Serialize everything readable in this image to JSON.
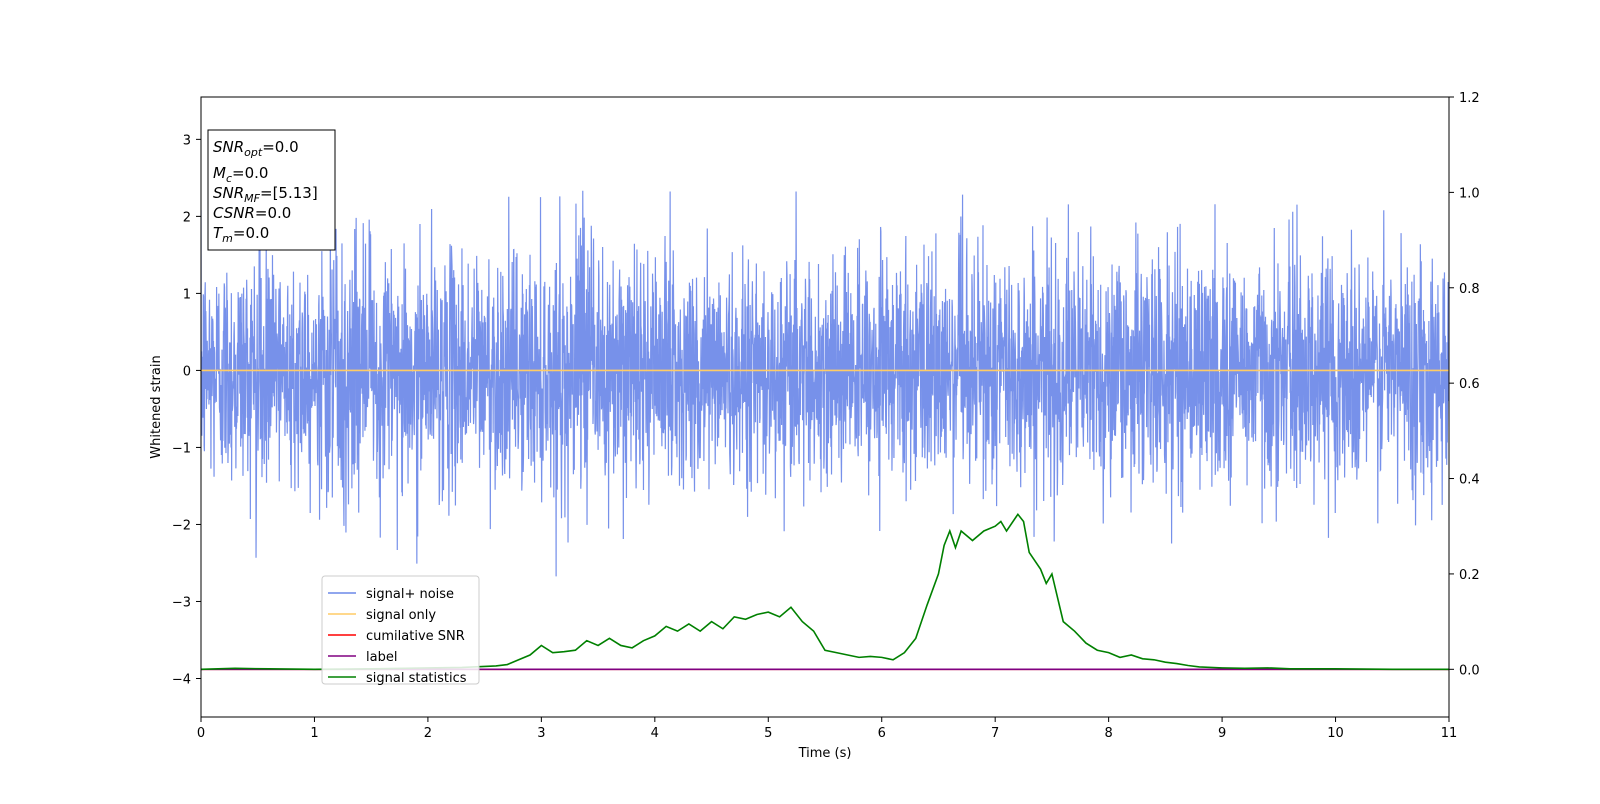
{
  "chart_data": {
    "type": "line",
    "xlabel": "Time (s)",
    "ylabel": "Whitened strain",
    "xlim": [
      0,
      11
    ],
    "ylim_left": [
      -4.5,
      3.55
    ],
    "ylim_right": [
      -0.1,
      1.2
    ],
    "x_ticks": [
      0,
      1,
      2,
      3,
      4,
      5,
      6,
      7,
      8,
      9,
      10,
      11
    ],
    "y_ticks_left": [
      -4,
      -3,
      -2,
      -1,
      0,
      1,
      2,
      3
    ],
    "y_ticks_right": [
      0.0,
      0.2,
      0.4,
      0.6,
      0.8,
      1.0,
      1.2
    ],
    "y_ticks_right_labels": [
      "0.0",
      "0.2",
      "0.4",
      "0.6",
      "0.8",
      "1.0",
      "1.2"
    ],
    "grid": false,
    "legend_placement": "lower-left",
    "legend": [
      {
        "label": "signal+ noise",
        "color": "#6b88e8"
      },
      {
        "label": "signal only",
        "color": "#ffcc66"
      },
      {
        "label": "cumilative SNR",
        "color": "#ff0000"
      },
      {
        "label": "label",
        "color": "#800080"
      },
      {
        "label": "signal statistics",
        "color": "#008000"
      }
    ],
    "annotation": {
      "lines": [
        {
          "sym": "SNR",
          "sub": "opt",
          "rest": "=0.0"
        },
        {
          "sym": "M",
          "sub": "c",
          "rest": "=0.0"
        },
        {
          "sym": "SNR",
          "sub": "MF",
          "rest": "=[5.13]"
        },
        {
          "sym": "CSNR",
          "sub": "",
          "rest": "=0.0"
        },
        {
          "sym": "T",
          "sub": "m",
          "rest": "=0.0"
        }
      ]
    },
    "series": [
      {
        "name": "signal+ noise",
        "color": "#6b88e8",
        "axis": "left",
        "kind": "noise",
        "sigma": 0.75,
        "range": [
          -2.7,
          2.5
        ],
        "samples": 4400
      },
      {
        "name": "signal only",
        "color": "#ffcc66",
        "axis": "left",
        "x": [
          0,
          11
        ],
        "y": [
          0.0,
          0.0
        ]
      },
      {
        "name": "cumilative SNR",
        "color": "#ff0000",
        "axis": "right",
        "x": [
          0,
          11
        ],
        "y": [
          0.0,
          0.0
        ]
      },
      {
        "name": "label",
        "color": "#800080",
        "axis": "right",
        "x": [
          0,
          11
        ],
        "y": [
          0.0,
          0.0
        ]
      },
      {
        "name": "signal statistics",
        "color": "#008000",
        "axis": "right",
        "x": [
          0,
          0.3,
          0.6,
          1.0,
          1.5,
          2.0,
          2.3,
          2.5,
          2.6,
          2.7,
          2.8,
          2.9,
          3.0,
          3.1,
          3.2,
          3.3,
          3.4,
          3.5,
          3.6,
          3.7,
          3.8,
          3.9,
          4.0,
          4.1,
          4.2,
          4.3,
          4.4,
          4.5,
          4.6,
          4.7,
          4.8,
          4.9,
          5.0,
          5.1,
          5.2,
          5.3,
          5.4,
          5.5,
          5.6,
          5.7,
          5.8,
          5.9,
          6.0,
          6.1,
          6.2,
          6.3,
          6.4,
          6.5,
          6.55,
          6.6,
          6.65,
          6.7,
          6.8,
          6.9,
          7.0,
          7.05,
          7.1,
          7.2,
          7.25,
          7.3,
          7.4,
          7.45,
          7.5,
          7.6,
          7.7,
          7.8,
          7.9,
          8.0,
          8.1,
          8.2,
          8.3,
          8.4,
          8.5,
          8.6,
          8.7,
          8.8,
          9.0,
          9.2,
          9.4,
          9.6,
          9.8,
          10.0,
          10.5,
          11.0
        ],
        "y": [
          0.0,
          0.002,
          0.001,
          0.0,
          0.001,
          0.003,
          0.004,
          0.006,
          0.007,
          0.01,
          0.02,
          0.03,
          0.05,
          0.035,
          0.037,
          0.04,
          0.06,
          0.05,
          0.065,
          0.05,
          0.045,
          0.06,
          0.07,
          0.09,
          0.08,
          0.095,
          0.08,
          0.1,
          0.085,
          0.11,
          0.105,
          0.115,
          0.12,
          0.11,
          0.13,
          0.1,
          0.08,
          0.04,
          0.035,
          0.03,
          0.025,
          0.027,
          0.025,
          0.02,
          0.035,
          0.065,
          0.135,
          0.2,
          0.26,
          0.29,
          0.255,
          0.29,
          0.27,
          0.29,
          0.3,
          0.31,
          0.29,
          0.325,
          0.31,
          0.245,
          0.21,
          0.18,
          0.2,
          0.1,
          0.08,
          0.055,
          0.04,
          0.035,
          0.025,
          0.03,
          0.022,
          0.02,
          0.015,
          0.012,
          0.008,
          0.005,
          0.003,
          0.002,
          0.003,
          0.001,
          0.001,
          0.001,
          0.0,
          0.0
        ]
      }
    ]
  }
}
